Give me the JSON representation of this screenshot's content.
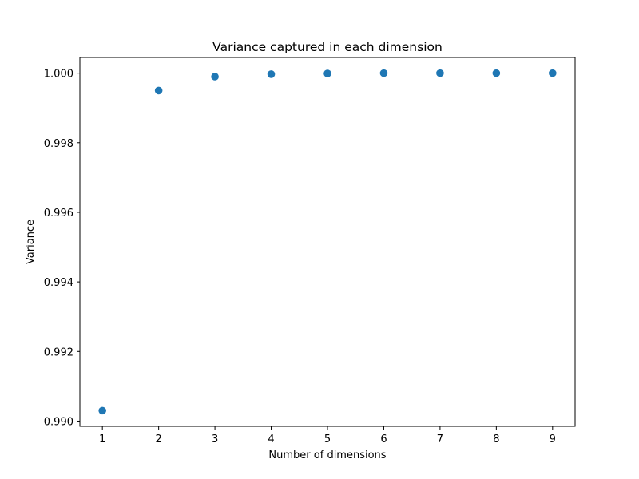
{
  "chart_data": {
    "type": "scatter",
    "title": "Variance captured in each dimension",
    "xlabel": "Number of dimensions",
    "ylabel": "Variance",
    "x": [
      1,
      2,
      3,
      4,
      5,
      6,
      7,
      8,
      9
    ],
    "y": [
      0.9903,
      0.9995,
      0.9999,
      0.99997,
      0.99999,
      1.0,
      1.0,
      1.0,
      1.0
    ],
    "xlim": [
      0.6,
      9.4
    ],
    "ylim": [
      0.98985,
      1.00045
    ],
    "xticks": [
      1,
      2,
      3,
      4,
      5,
      6,
      7,
      8,
      9
    ],
    "xtick_labels": [
      "1",
      "2",
      "3",
      "4",
      "5",
      "6",
      "7",
      "8",
      "9"
    ],
    "yticks": [
      0.99,
      0.992,
      0.994,
      0.996,
      0.998,
      1.0
    ],
    "ytick_labels": [
      "0.990",
      "0.992",
      "0.994",
      "0.996",
      "0.998",
      "1.000"
    ],
    "grid": false,
    "legend": "none",
    "marker_color": "#1f77b4"
  }
}
